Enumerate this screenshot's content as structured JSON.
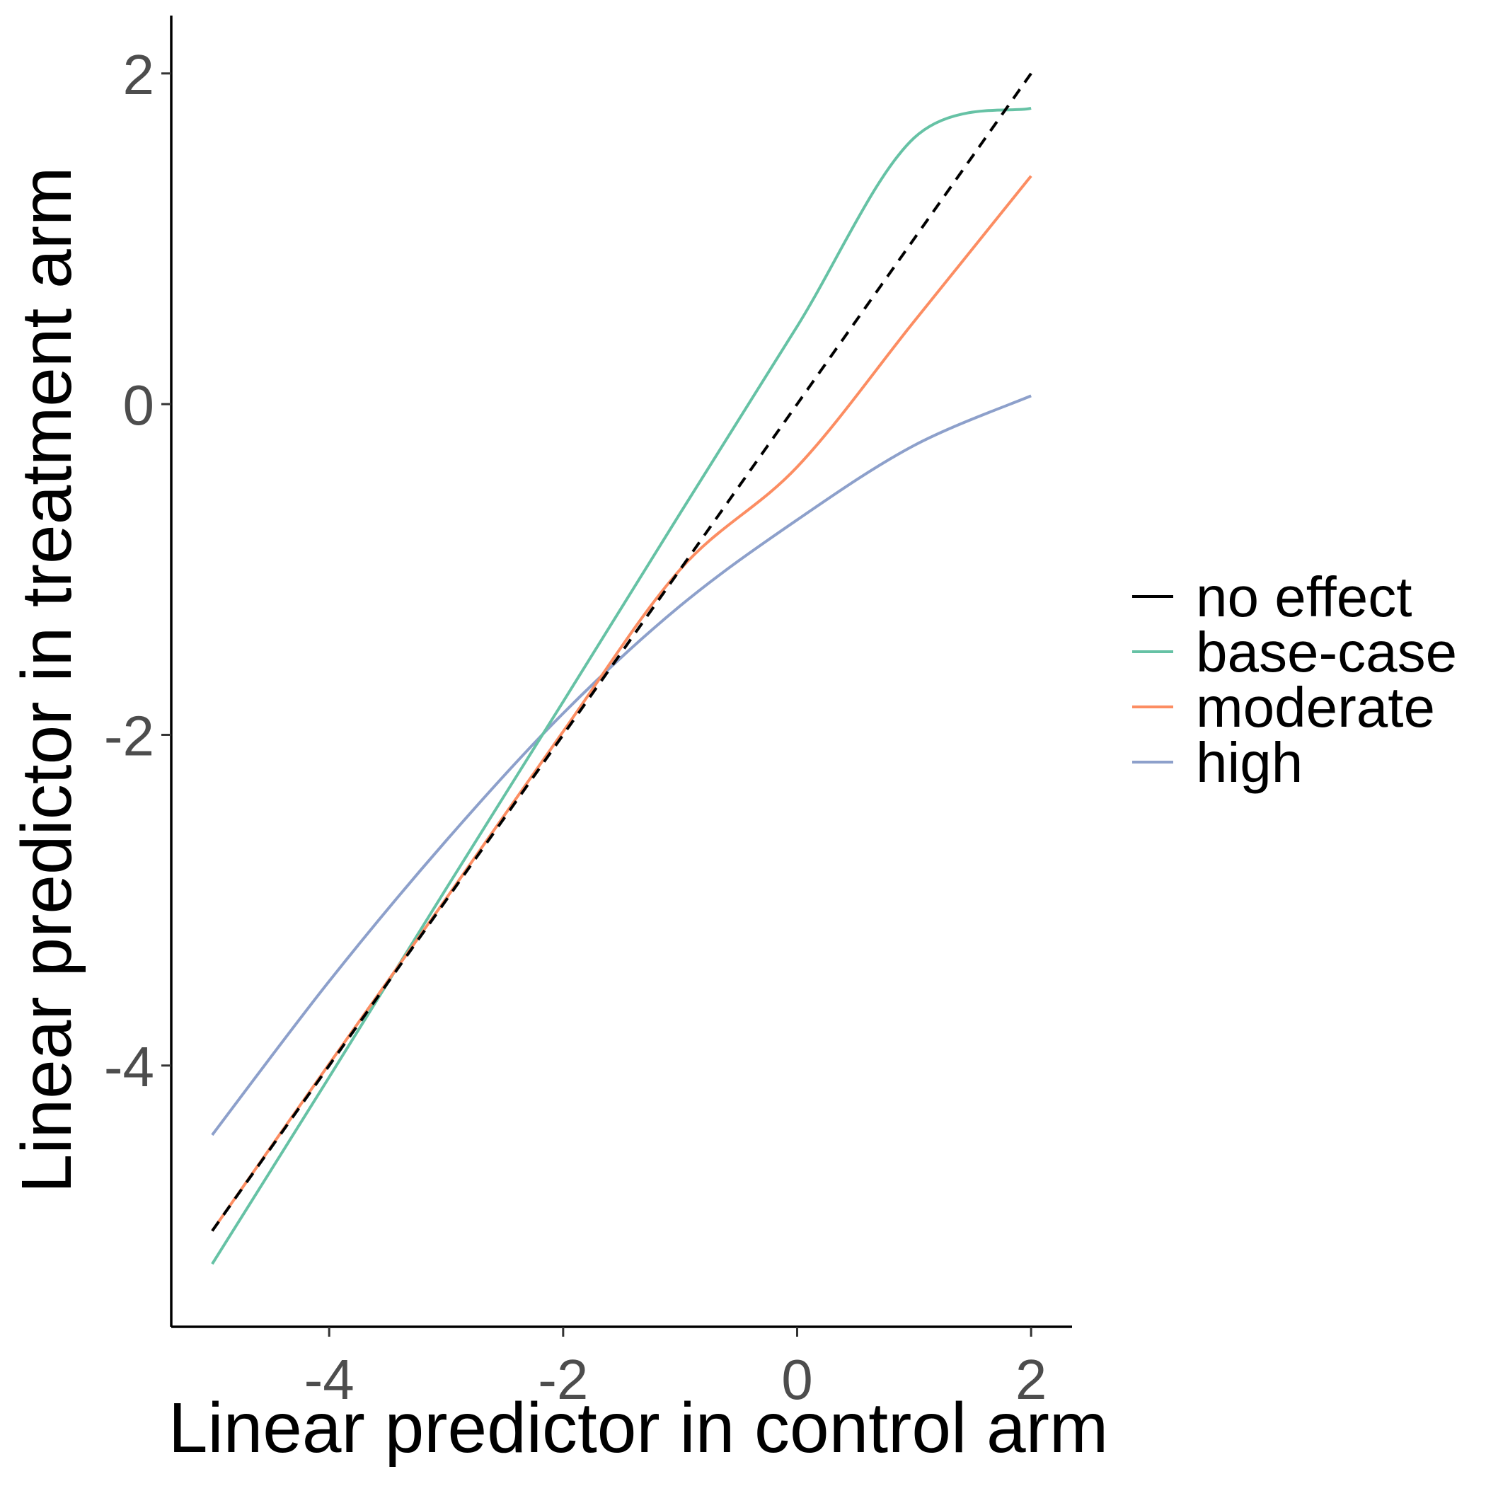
{
  "chart_data": {
    "type": "line",
    "title": "",
    "xlabel": "Linear predictor in control arm",
    "ylabel": "Linear predictor in treatment arm",
    "xlim": [
      -5.35,
      2.35
    ],
    "ylim": [
      -5.58,
      2.35
    ],
    "x_ticks": [
      -4,
      -2,
      0,
      2
    ],
    "x_tick_labels": [
      "-4",
      "-2",
      "0",
      "2"
    ],
    "y_ticks": [
      -4,
      -2,
      0,
      2
    ],
    "y_tick_labels": [
      "-4",
      "-2",
      "0",
      "2"
    ],
    "grid": false,
    "legend_position": "right",
    "series": [
      {
        "name": "no effect",
        "color": "#000000",
        "dash": "dashed",
        "x": [
          -5,
          -4,
          -3,
          -2,
          -1,
          0,
          1,
          2
        ],
        "y": [
          -5,
          -4,
          -3,
          -2,
          -1,
          0,
          1,
          2
        ]
      },
      {
        "name": "base-case",
        "color": "#66C2A5",
        "dash": "solid",
        "x": [
          -5,
          -4,
          -3,
          -2,
          -1,
          0,
          1,
          2
        ],
        "y": [
          -5.2,
          -4.07,
          -2.93,
          -1.8,
          -0.66,
          0.47,
          1.61,
          1.79
        ]
      },
      {
        "name": "moderate",
        "color": "#FC8D62",
        "dash": "solid",
        "x": [
          -5,
          -4,
          -3,
          -2,
          -1,
          0,
          1,
          2
        ],
        "y": [
          -5.0,
          -3.99,
          -2.99,
          -1.98,
          -1.0,
          -0.38,
          0.5,
          1.38
        ]
      },
      {
        "name": "high",
        "color": "#8DA0CB",
        "dash": "solid",
        "x": [
          -5,
          -4,
          -3,
          -2,
          -1,
          0,
          1,
          2
        ],
        "y": [
          -4.42,
          -3.49,
          -2.64,
          -1.87,
          -1.22,
          -0.7,
          -0.25,
          0.05
        ]
      }
    ]
  }
}
